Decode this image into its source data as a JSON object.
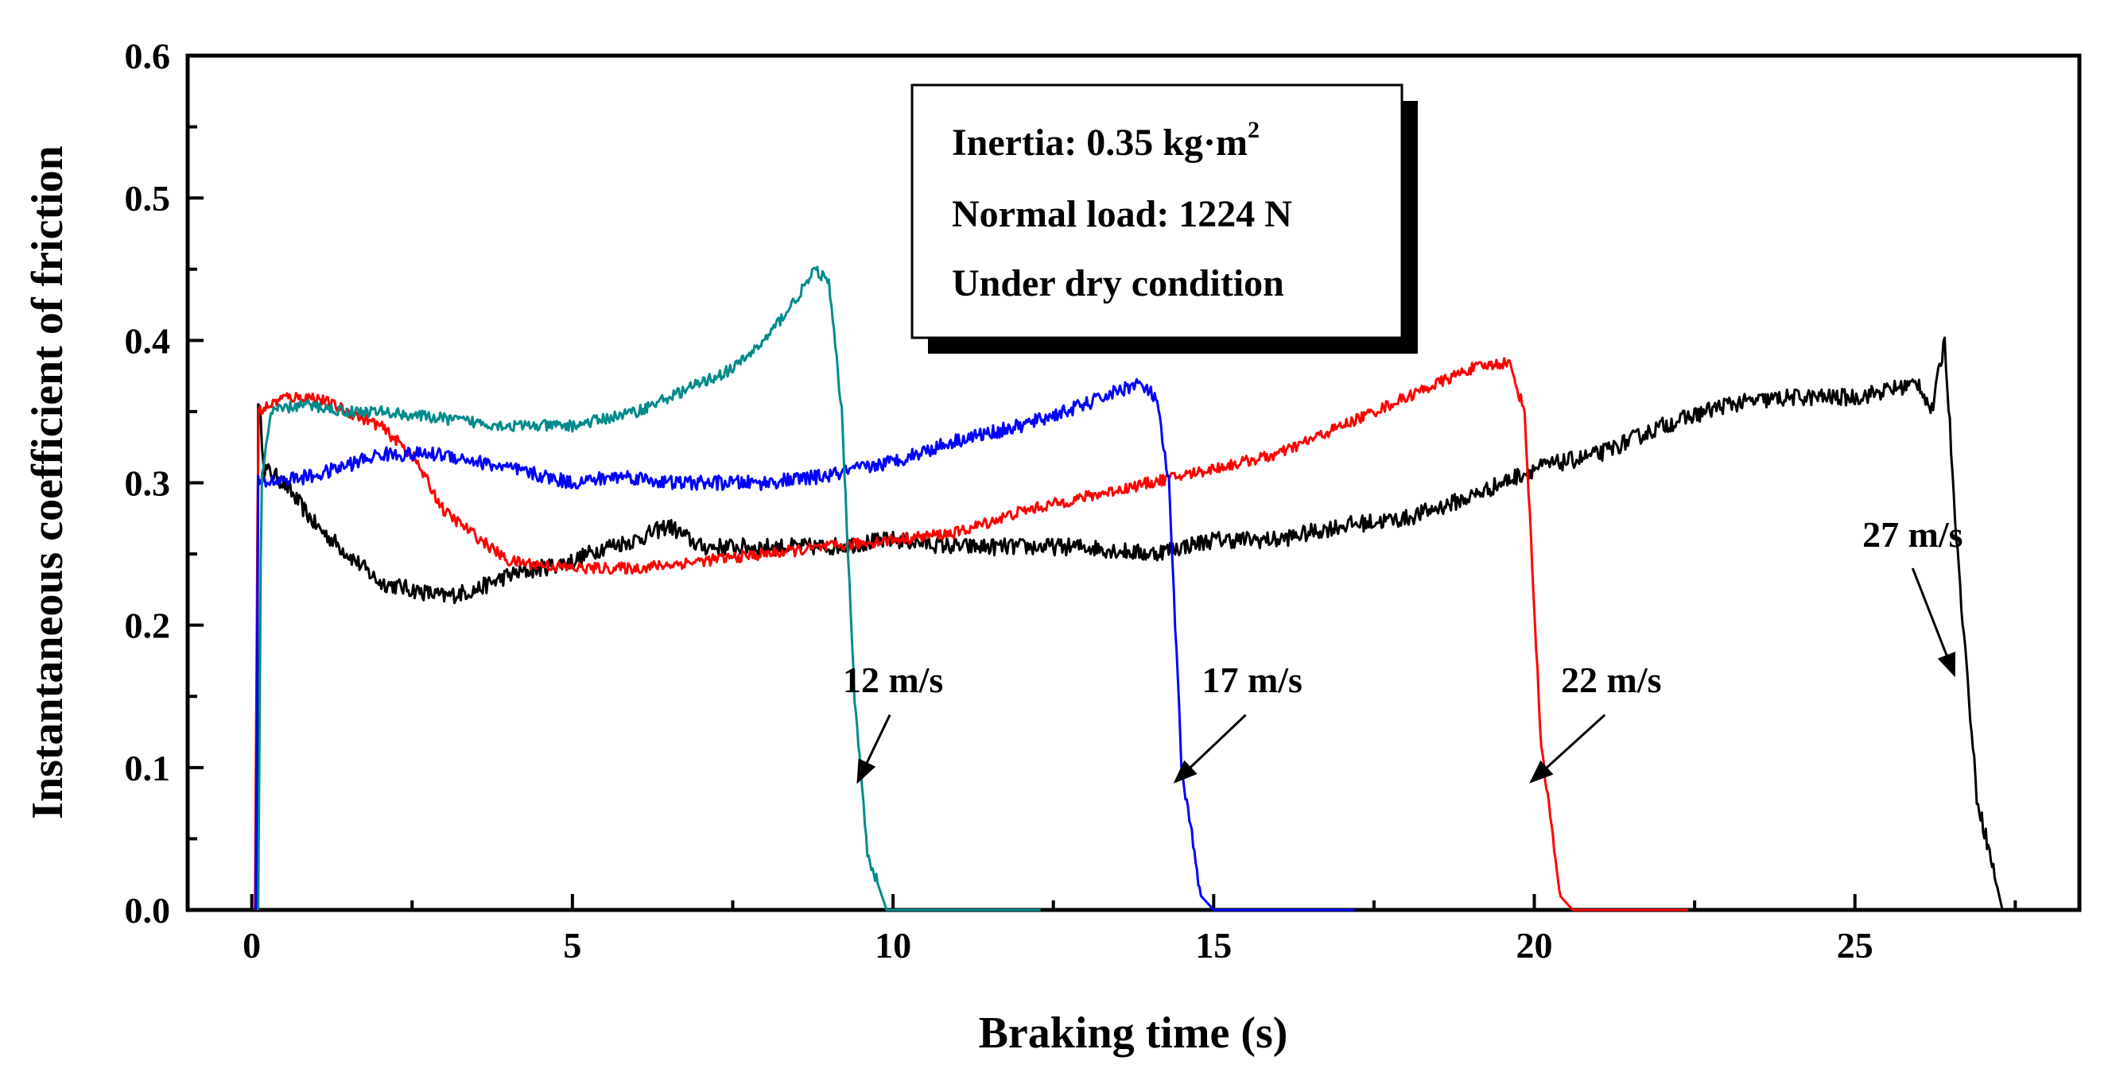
{
  "chart_data": {
    "type": "line",
    "xlabel": "Braking time (s)",
    "ylabel": "Instantaneous coefficient of friction",
    "xlim": [
      -1,
      28.5
    ],
    "ylim": [
      0,
      0.6
    ],
    "x_ticks": [
      0,
      5,
      10,
      15,
      20,
      25
    ],
    "x_tick_labels": [
      "0",
      "5",
      "10",
      "15",
      "20",
      "25"
    ],
    "y_ticks": [
      0.0,
      0.1,
      0.2,
      0.3,
      0.4,
      0.5,
      0.6
    ],
    "y_tick_labels": [
      "0.0",
      "0.1",
      "0.2",
      "0.3",
      "0.4",
      "0.5",
      "0.6"
    ],
    "info_box": {
      "line1_prefix": "Inertia: 0.35 kg·m",
      "line1_sup": "2",
      "line2": "Normal load: 1224 N",
      "line3": "Under dry condition"
    },
    "series": [
      {
        "name": "27 m/s",
        "color": "#000000",
        "noise": 0.006,
        "points": [
          [
            0.08,
            0.0
          ],
          [
            0.1,
            0.36
          ],
          [
            0.2,
            0.31
          ],
          [
            0.5,
            0.3
          ],
          [
            1,
            0.27
          ],
          [
            1.5,
            0.25
          ],
          [
            2,
            0.23
          ],
          [
            2.5,
            0.225
          ],
          [
            3,
            0.22
          ],
          [
            3.5,
            0.225
          ],
          [
            4,
            0.235
          ],
          [
            4.5,
            0.24
          ],
          [
            5,
            0.245
          ],
          [
            5.5,
            0.255
          ],
          [
            6,
            0.26
          ],
          [
            6.5,
            0.27
          ],
          [
            7,
            0.255
          ],
          [
            8,
            0.255
          ],
          [
            9,
            0.255
          ],
          [
            10,
            0.26
          ],
          [
            11,
            0.255
          ],
          [
            12,
            0.255
          ],
          [
            13,
            0.255
          ],
          [
            14,
            0.25
          ],
          [
            15,
            0.26
          ],
          [
            16,
            0.26
          ],
          [
            17,
            0.27
          ],
          [
            18,
            0.275
          ],
          [
            19,
            0.29
          ],
          [
            20,
            0.31
          ],
          [
            21,
            0.32
          ],
          [
            22,
            0.34
          ],
          [
            23,
            0.355
          ],
          [
            24,
            0.36
          ],
          [
            25,
            0.36
          ],
          [
            26,
            0.37
          ],
          [
            26.2,
            0.35
          ],
          [
            26.4,
            0.4
          ],
          [
            26.6,
            0.25
          ],
          [
            26.9,
            0.08
          ],
          [
            27.3,
            0.0
          ],
          [
            27.5,
            0.0
          ]
        ],
        "label": {
          "text": "27 m/s",
          "x": 25.9,
          "y": 0.255
        },
        "arrow": {
          "from": [
            25.9,
            0.24
          ],
          "to": [
            26.55,
            0.165
          ]
        }
      },
      {
        "name": "22 m/s",
        "color": "#ff0000",
        "noise": 0.004,
        "points": [
          [
            0.05,
            0.0
          ],
          [
            0.1,
            0.35
          ],
          [
            0.5,
            0.36
          ],
          [
            1,
            0.36
          ],
          [
            1.5,
            0.35
          ],
          [
            2,
            0.34
          ],
          [
            2.5,
            0.32
          ],
          [
            3,
            0.28
          ],
          [
            4,
            0.245
          ],
          [
            5,
            0.24
          ],
          [
            6,
            0.24
          ],
          [
            7,
            0.245
          ],
          [
            8,
            0.25
          ],
          [
            9,
            0.255
          ],
          [
            10,
            0.26
          ],
          [
            11,
            0.265
          ],
          [
            12,
            0.28
          ],
          [
            13,
            0.29
          ],
          [
            14,
            0.3
          ],
          [
            15,
            0.31
          ],
          [
            16,
            0.32
          ],
          [
            17,
            0.34
          ],
          [
            18,
            0.36
          ],
          [
            19,
            0.38
          ],
          [
            19.6,
            0.385
          ],
          [
            19.85,
            0.35
          ],
          [
            20.1,
            0.12
          ],
          [
            20.4,
            0.01
          ],
          [
            20.6,
            0.0
          ],
          [
            22.4,
            0.0
          ]
        ],
        "label": {
          "text": "22 m/s",
          "x": 21.2,
          "y": 0.153
        },
        "arrow": {
          "from": [
            21.1,
            0.137
          ],
          "to": [
            19.95,
            0.09
          ]
        }
      },
      {
        "name": "17 m/s",
        "color": "#0000ff",
        "noise": 0.005,
        "points": [
          [
            0.06,
            0.0
          ],
          [
            0.1,
            0.3
          ],
          [
            1,
            0.305
          ],
          [
            2,
            0.32
          ],
          [
            3,
            0.32
          ],
          [
            4,
            0.31
          ],
          [
            5,
            0.3
          ],
          [
            5.8,
            0.305
          ],
          [
            6.5,
            0.3
          ],
          [
            7,
            0.3
          ],
          [
            8,
            0.3
          ],
          [
            9,
            0.305
          ],
          [
            10,
            0.315
          ],
          [
            11,
            0.33
          ],
          [
            12,
            0.34
          ],
          [
            13,
            0.355
          ],
          [
            13.8,
            0.37
          ],
          [
            14.1,
            0.36
          ],
          [
            14.3,
            0.3
          ],
          [
            14.5,
            0.1
          ],
          [
            14.8,
            0.01
          ],
          [
            15.0,
            0.0
          ],
          [
            17.2,
            0.0
          ]
        ],
        "label": {
          "text": "17 m/s",
          "x": 15.6,
          "y": 0.153
        },
        "arrow": {
          "from": [
            15.5,
            0.137
          ],
          "to": [
            14.4,
            0.09
          ]
        }
      },
      {
        "name": "12 m/s",
        "color": "#008b8b",
        "noise": 0.004,
        "points": [
          [
            0.1,
            0.0
          ],
          [
            0.15,
            0.3
          ],
          [
            0.3,
            0.35
          ],
          [
            0.8,
            0.355
          ],
          [
            1.5,
            0.35
          ],
          [
            2,
            0.35
          ],
          [
            3,
            0.345
          ],
          [
            4,
            0.34
          ],
          [
            5,
            0.34
          ],
          [
            6,
            0.35
          ],
          [
            7,
            0.37
          ],
          [
            7.5,
            0.38
          ],
          [
            8,
            0.4
          ],
          [
            8.5,
            0.43
          ],
          [
            8.8,
            0.45
          ],
          [
            9.0,
            0.44
          ],
          [
            9.2,
            0.35
          ],
          [
            9.4,
            0.15
          ],
          [
            9.6,
            0.04
          ],
          [
            9.9,
            0.0
          ],
          [
            12.3,
            0.0
          ]
        ],
        "label": {
          "text": "12 m/s",
          "x": 10.0,
          "y": 0.153
        },
        "arrow": {
          "from": [
            9.95,
            0.137
          ],
          "to": [
            9.45,
            0.09
          ]
        }
      }
    ]
  }
}
